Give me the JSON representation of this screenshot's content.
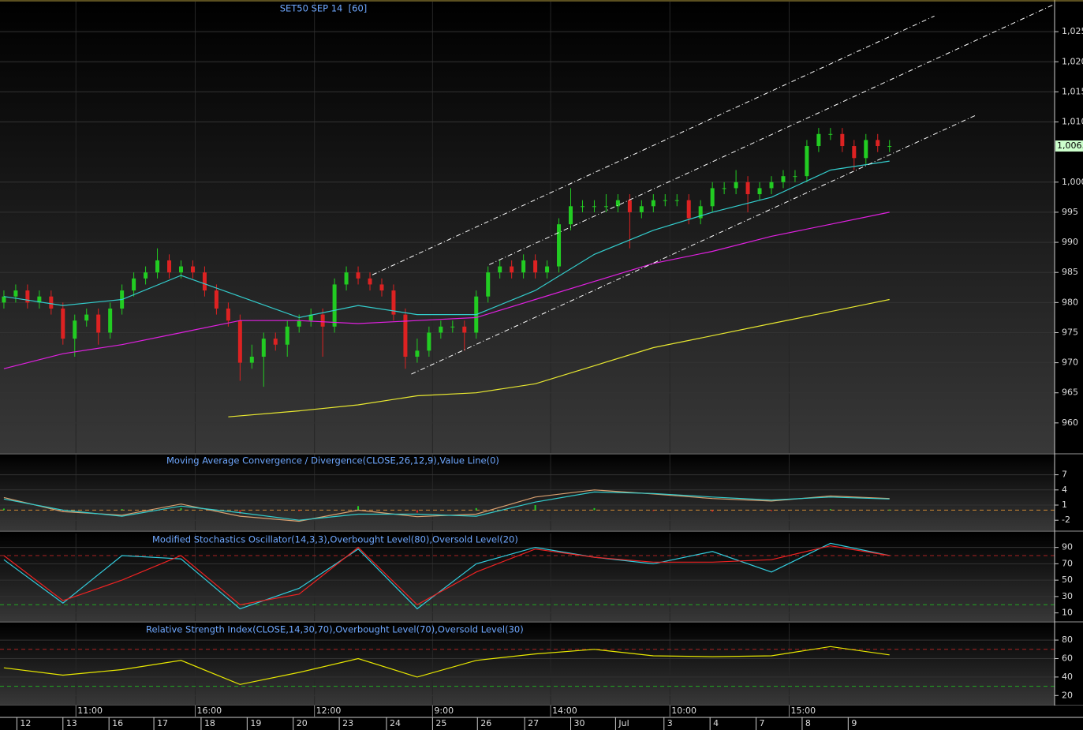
{
  "chart_data": [
    {
      "type": "candlestick",
      "title": "SET50 SEP 14  [60]",
      "xlim": [
        -0.33,
        88.98
      ],
      "ylim": [
        955,
        1030
      ],
      "yticks": [
        960,
        965,
        970,
        975,
        980,
        985,
        990,
        995,
        {
          "value": 1000,
          "label": "1,000"
        },
        {
          "value": 1010,
          "label": "1,010"
        },
        {
          "value": 1015,
          "label": "1,015"
        },
        {
          "value": 1020,
          "label": "1,020"
        },
        {
          "value": 1025,
          "label": "1,025"
        }
      ],
      "open": [
        980,
        981,
        982,
        980,
        981,
        979,
        974,
        977,
        978,
        975,
        979,
        982,
        984,
        985,
        987,
        985,
        986,
        985,
        982,
        979,
        977,
        970,
        971,
        974,
        973,
        976,
        977,
        978,
        976,
        983,
        985,
        984,
        983,
        982,
        978,
        971,
        972,
        975,
        976,
        976,
        975,
        981,
        985,
        986,
        985,
        987,
        985,
        986,
        993,
        996,
        996,
        996,
        996,
        997,
        995,
        996,
        997,
        997,
        997,
        994,
        996,
        999,
        999,
        1000,
        998,
        999,
        1000,
        1001,
        1001,
        1006,
        1008,
        1008,
        1006,
        1004,
        1007,
        1006
      ],
      "high": [
        982,
        983,
        983,
        982,
        982,
        980,
        978,
        979,
        979,
        980,
        983,
        985,
        986,
        989,
        988,
        987,
        987,
        986,
        983,
        980,
        978,
        973,
        975,
        975,
        977,
        978,
        979,
        979,
        984,
        986,
        986,
        985,
        984,
        983,
        979,
        974,
        976,
        977,
        977,
        977,
        982,
        986,
        987,
        987,
        988,
        988,
        987,
        994,
        999,
        997,
        997,
        998,
        998,
        998,
        997,
        998,
        998,
        998,
        998,
        997,
        1000,
        1000,
        1002,
        1001,
        1000,
        1001,
        1002,
        1002,
        1007,
        1009,
        1009,
        1009,
        1007,
        1008,
        1008,
        1007
      ],
      "low": [
        979,
        980,
        979,
        979,
        978,
        973,
        971,
        976,
        973,
        974,
        978,
        981,
        983,
        984,
        984,
        984,
        984,
        981,
        978,
        976,
        967,
        969,
        966,
        972,
        971,
        975,
        976,
        971,
        975,
        982,
        983,
        982,
        981,
        977,
        969,
        970,
        971,
        974,
        975,
        972,
        974,
        980,
        984,
        984,
        984,
        984,
        984,
        985,
        992,
        995,
        995,
        995,
        995,
        989,
        994,
        995,
        996,
        996,
        993,
        993,
        995,
        998,
        998,
        995,
        997,
        998,
        999,
        1000,
        1000,
        1005,
        1007,
        1005,
        1002,
        1003,
        1005,
        1005
      ],
      "close": [
        981,
        982,
        980,
        981,
        979,
        974,
        977,
        978,
        975,
        979,
        982,
        984,
        985,
        987,
        985,
        986,
        985,
        982,
        979,
        977,
        970,
        971,
        974,
        973,
        976,
        977,
        978,
        976,
        983,
        985,
        984,
        983,
        982,
        978,
        971,
        972,
        975,
        976,
        976,
        975,
        981,
        985,
        986,
        985,
        987,
        985,
        986,
        993,
        996,
        996,
        996,
        996,
        997,
        995,
        996,
        997,
        997,
        997,
        994,
        996,
        999,
        999,
        1000,
        998,
        999,
        1000,
        1001,
        1001,
        1006,
        1008,
        1008,
        1006,
        1004,
        1007,
        1006,
        1006
      ],
      "up_color": "#22cc22",
      "down_color": "#dd2222",
      "series": [
        {
          "color": "#33cccc",
          "x": [
            0,
            5,
            10,
            15,
            20,
            25,
            30,
            35,
            40,
            45,
            50,
            55,
            60,
            65,
            70,
            75
          ],
          "values": [
            981,
            979.5,
            980.5,
            984.5,
            981,
            977.5,
            979.5,
            978,
            978,
            982,
            988,
            992,
            995,
            997.5,
            1002,
            1003.5
          ]
        },
        {
          "color": "#e020e0",
          "x": [
            0,
            5,
            10,
            15,
            20,
            25,
            30,
            35,
            40,
            45,
            50,
            55,
            60,
            65,
            70,
            75
          ],
          "values": [
            969,
            971.5,
            973,
            975,
            977,
            977,
            976.5,
            977,
            977.5,
            980.5,
            983.5,
            986.5,
            988.5,
            991,
            993,
            995
          ]
        },
        {
          "color": "#e8e830",
          "x": [
            19,
            25,
            30,
            35,
            40,
            45,
            50,
            55,
            60,
            65,
            70,
            75
          ],
          "values": [
            961,
            962,
            963,
            964.5,
            965,
            966.5,
            969.5,
            972.5,
            974.5,
            976.5,
            978.5,
            980.5
          ]
        }
      ],
      "trend_lines": [
        {
          "color": "#ffffff",
          "x": [
            31.2,
            78.8
          ],
          "values": [
            984.6,
            1027.6
          ]
        },
        {
          "color": "#ffffff",
          "x": [
            41.1,
            88.9
          ],
          "values": [
            986.3,
            1029.5
          ]
        },
        {
          "color": "#ffffff",
          "x": [
            34.5,
            82.4
          ],
          "values": [
            968.1,
            1011.2
          ]
        }
      ],
      "last_price": {
        "value": 1006,
        "label": "1,006.",
        "color": "#ccffcc"
      },
      "xticks": [
        {
          "value": 6.1,
          "label": "11:00"
        },
        {
          "value": 16.2,
          "label": "16:00"
        },
        {
          "value": 26.3,
          "label": "12:00"
        },
        {
          "value": 36.3,
          "label": "9:00"
        },
        {
          "value": 46.3,
          "label": "14:00"
        },
        {
          "value": 56.4,
          "label": "10:00"
        },
        {
          "value": 66.5,
          "label": "15:00"
        }
      ],
      "date_ticks": [
        {
          "value": 1.1,
          "label": "12"
        },
        {
          "value": 5.0,
          "label": "13"
        },
        {
          "value": 8.9,
          "label": "16"
        },
        {
          "value": 12.7,
          "label": "17"
        },
        {
          "value": 16.7,
          "label": "18"
        },
        {
          "value": 20.6,
          "label": "19"
        },
        {
          "value": 24.5,
          "label": "20"
        },
        {
          "value": 28.4,
          "label": "23"
        },
        {
          "value": 32.4,
          "label": "24"
        },
        {
          "value": 36.3,
          "label": "25"
        },
        {
          "value": 40.1,
          "label": "26"
        },
        {
          "value": 44.1,
          "label": "27"
        },
        {
          "value": 48.0,
          "label": "30"
        },
        {
          "value": 51.8,
          "label": "Jul"
        },
        {
          "value": 55.9,
          "label": "3"
        },
        {
          "value": 59.8,
          "label": "4"
        },
        {
          "value": 63.7,
          "label": "7"
        },
        {
          "value": 67.6,
          "label": "8"
        },
        {
          "value": 71.5,
          "label": "9"
        }
      ]
    },
    {
      "type": "line",
      "title": "Moving Average Convergence / Divergence(CLOSE,26,12,9),Value Line(0)",
      "ylim": [
        -4,
        11
      ],
      "yticks": [
        -2,
        1,
        4,
        7
      ],
      "levels": [
        {
          "value": 0,
          "color": "#cc8833"
        }
      ],
      "series": [
        {
          "color": "#d9a070",
          "x": [
            0,
            5,
            10,
            15,
            20,
            25,
            30,
            35,
            40,
            45,
            50,
            55,
            60,
            65,
            70,
            75
          ],
          "values": [
            2.5,
            -0.3,
            -1,
            1.2,
            -1.2,
            -2.2,
            0,
            -1.3,
            -0.8,
            2.6,
            4,
            3.2,
            2.3,
            1.8,
            2.8,
            2.3
          ]
        },
        {
          "color": "#33cccc",
          "x": [
            0,
            5,
            10,
            15,
            20,
            25,
            30,
            35,
            40,
            45,
            50,
            55,
            60,
            65,
            70,
            75
          ],
          "values": [
            2.2,
            0,
            -1.2,
            0.8,
            -0.5,
            -2,
            -0.8,
            -0.8,
            -1.2,
            1.6,
            3.6,
            3.3,
            2.6,
            2,
            2.6,
            2.2
          ]
        }
      ],
      "histogram": {
        "x": [
          0,
          5,
          10,
          15,
          20,
          25,
          30,
          35,
          40,
          45,
          50,
          55,
          60,
          65,
          70,
          75
        ],
        "values": [
          0.3,
          -0.3,
          0.2,
          0.4,
          -0.7,
          -0.2,
          0.8,
          -0.5,
          0.4,
          1,
          0.4,
          -0.1,
          -0.3,
          -0.2,
          0.2,
          0.1
        ],
        "up_color": "#22cc22",
        "down_color": "#dd2222"
      }
    },
    {
      "type": "line",
      "title": "Modified Stochastics Oscillator(14,3,3),Overbought Level(80),Oversold Level(20)",
      "ylim": [
        0,
        107
      ],
      "yticks": [
        10,
        30,
        50,
        70,
        90
      ],
      "levels": [
        {
          "value": 80,
          "color": "#aa2222"
        },
        {
          "value": 20,
          "color": "#22aa22"
        }
      ],
      "series": [
        {
          "color": "#33ccdd",
          "x": [
            0,
            5,
            10,
            15,
            20,
            25,
            30,
            35,
            40,
            45,
            50,
            55,
            60,
            65,
            70,
            75
          ],
          "values": [
            75,
            22,
            80,
            76,
            15,
            40,
            88,
            15,
            70,
            90,
            78,
            70,
            85,
            60,
            95,
            80
          ]
        },
        {
          "color": "#ee2222",
          "x": [
            0,
            5,
            10,
            15,
            20,
            25,
            30,
            35,
            40,
            45,
            50,
            55,
            60,
            65,
            70,
            75
          ],
          "values": [
            80,
            25,
            50,
            80,
            20,
            33,
            90,
            20,
            60,
            88,
            78,
            72,
            72,
            75,
            92,
            80
          ]
        }
      ]
    },
    {
      "type": "line",
      "title": "Relative Strength Index(CLOSE,14,30,70),Overbought Level(70),Oversold Level(30)",
      "ylim": [
        10,
        98
      ],
      "yticks": [
        20,
        40,
        60,
        80
      ],
      "levels": [
        {
          "value": 70,
          "color": "#aa2222"
        },
        {
          "value": 30,
          "color": "#22aa22"
        }
      ],
      "series": [
        {
          "color": "#e8e800",
          "x": [
            0,
            5,
            10,
            15,
            20,
            25,
            30,
            35,
            40,
            45,
            50,
            55,
            60,
            65,
            70,
            75
          ],
          "values": [
            50,
            42,
            48,
            58,
            32,
            45,
            60,
            40,
            58,
            65,
            70,
            63,
            62,
            63,
            73,
            64
          ]
        }
      ]
    }
  ]
}
